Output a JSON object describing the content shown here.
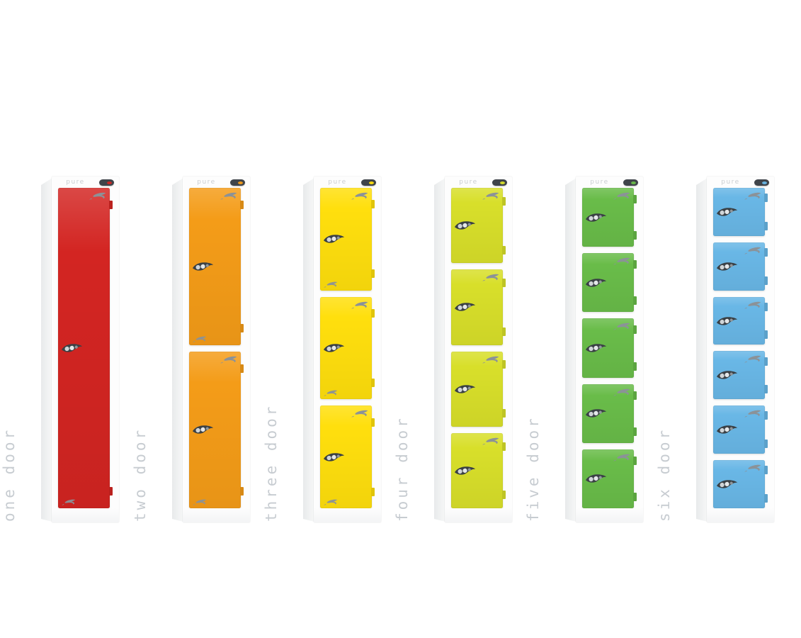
{
  "scene": {
    "background": "#ffffff",
    "description": "Row of six pure-brand lockers with increasing door counts"
  },
  "brand": {
    "logo_text": "pure"
  },
  "colors": {
    "label_text": "#c7ccd1",
    "cabinet_white": "#fdfdfd",
    "side_shade_dark": "#e8eaeb",
    "side_shade_light": "#f7f8f8",
    "swoosh_gray": "#8b9298",
    "handle_dark": "#3a4045",
    "handle_dot_silver": "#cfd4d7",
    "handle_dot_bright": "#e4e7e9",
    "handle_dot_small": "#8f969b",
    "badge_dark": "#3f444a"
  },
  "lockers": [
    {
      "id": "one-door",
      "label": "one door",
      "door_count": 1,
      "door_color": "#d32522"
    },
    {
      "id": "two-door",
      "label": "two door",
      "door_count": 2,
      "door_color": "#f49c18"
    },
    {
      "id": "three-door",
      "label": "three door",
      "door_count": 3,
      "door_color": "#ffdf0d"
    },
    {
      "id": "four-door",
      "label": "four door",
      "door_count": 4,
      "door_color": "#d8df2a"
    },
    {
      "id": "five-door",
      "label": "five door",
      "door_count": 5,
      "door_color": "#69bc49"
    },
    {
      "id": "six-door",
      "label": "six door",
      "door_count": 6,
      "door_color": "#69b7e6"
    }
  ]
}
